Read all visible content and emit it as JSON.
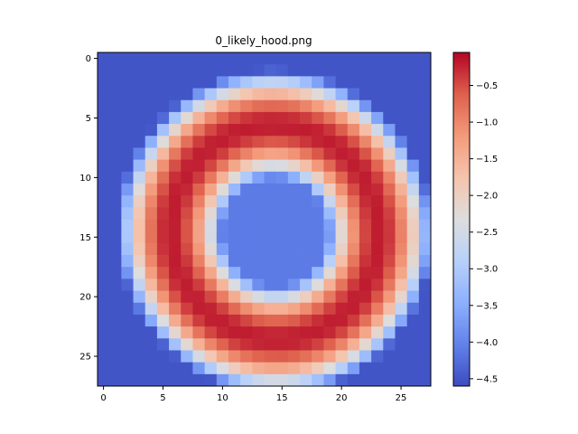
{
  "chart_data": {
    "type": "heatmap",
    "title": "0_likely_hood.png",
    "colormap": "coolwarm",
    "rows": 28,
    "cols": 28,
    "xlim": [
      -0.5,
      27.5
    ],
    "ylim": [
      27.5,
      -0.5
    ],
    "x_ticks": [
      0,
      5,
      10,
      15,
      20,
      25
    ],
    "y_ticks": [
      0,
      5,
      10,
      15,
      20,
      25
    ],
    "colorbar": {
      "vmin": -4.6,
      "vmax": -0.05,
      "ticks": [
        -4.5,
        -4.0,
        -3.5,
        -3.0,
        -2.5,
        -2.0,
        -1.5,
        -1.0,
        -0.5
      ],
      "tick_labels": [
        "−4.5",
        "−4.0",
        "−3.5",
        "−3.0",
        "−2.5",
        "−2.0",
        "−1.5",
        "−1.0",
        "−0.5"
      ]
    },
    "background_value": -4.5,
    "ring": {
      "center_row": 14.6,
      "center_col": 14.4,
      "radius_cols": 8.7,
      "radius_rows": 9.0,
      "thickness": 3.3,
      "peak_value": -0.2,
      "inner_min_value": -4.1,
      "rotation_deg": -12
    },
    "min_value": -4.6,
    "max_value": -0.05
  }
}
